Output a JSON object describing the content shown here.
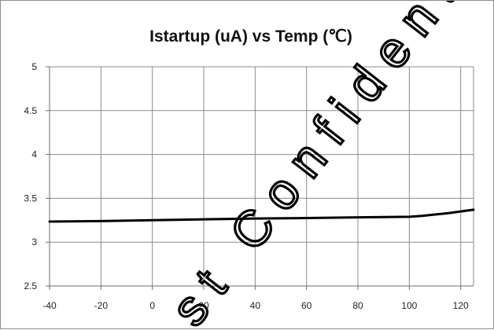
{
  "chart_data": {
    "type": "line",
    "title": "Istartup (uA) vs Temp (℃)",
    "xlabel": "",
    "ylabel": "",
    "xlim": [
      -40,
      125
    ],
    "ylim": [
      2.5,
      5
    ],
    "x_ticks": [
      -40,
      -20,
      0,
      20,
      40,
      60,
      80,
      100,
      120
    ],
    "y_ticks": [
      2.5,
      3,
      3.5,
      4,
      4.5,
      5
    ],
    "grid": true,
    "legend": "none",
    "series": [
      {
        "color": "#000000",
        "x": [
          -40,
          -20,
          0,
          20,
          40,
          60,
          80,
          100,
          105,
          110,
          115,
          120,
          125
        ],
        "y": [
          3.235,
          3.24,
          3.25,
          3.26,
          3.27,
          3.275,
          3.283,
          3.29,
          3.3,
          3.315,
          3.33,
          3.35,
          3.37
        ]
      }
    ]
  },
  "watermark": {
    "text": "st Confident"
  }
}
